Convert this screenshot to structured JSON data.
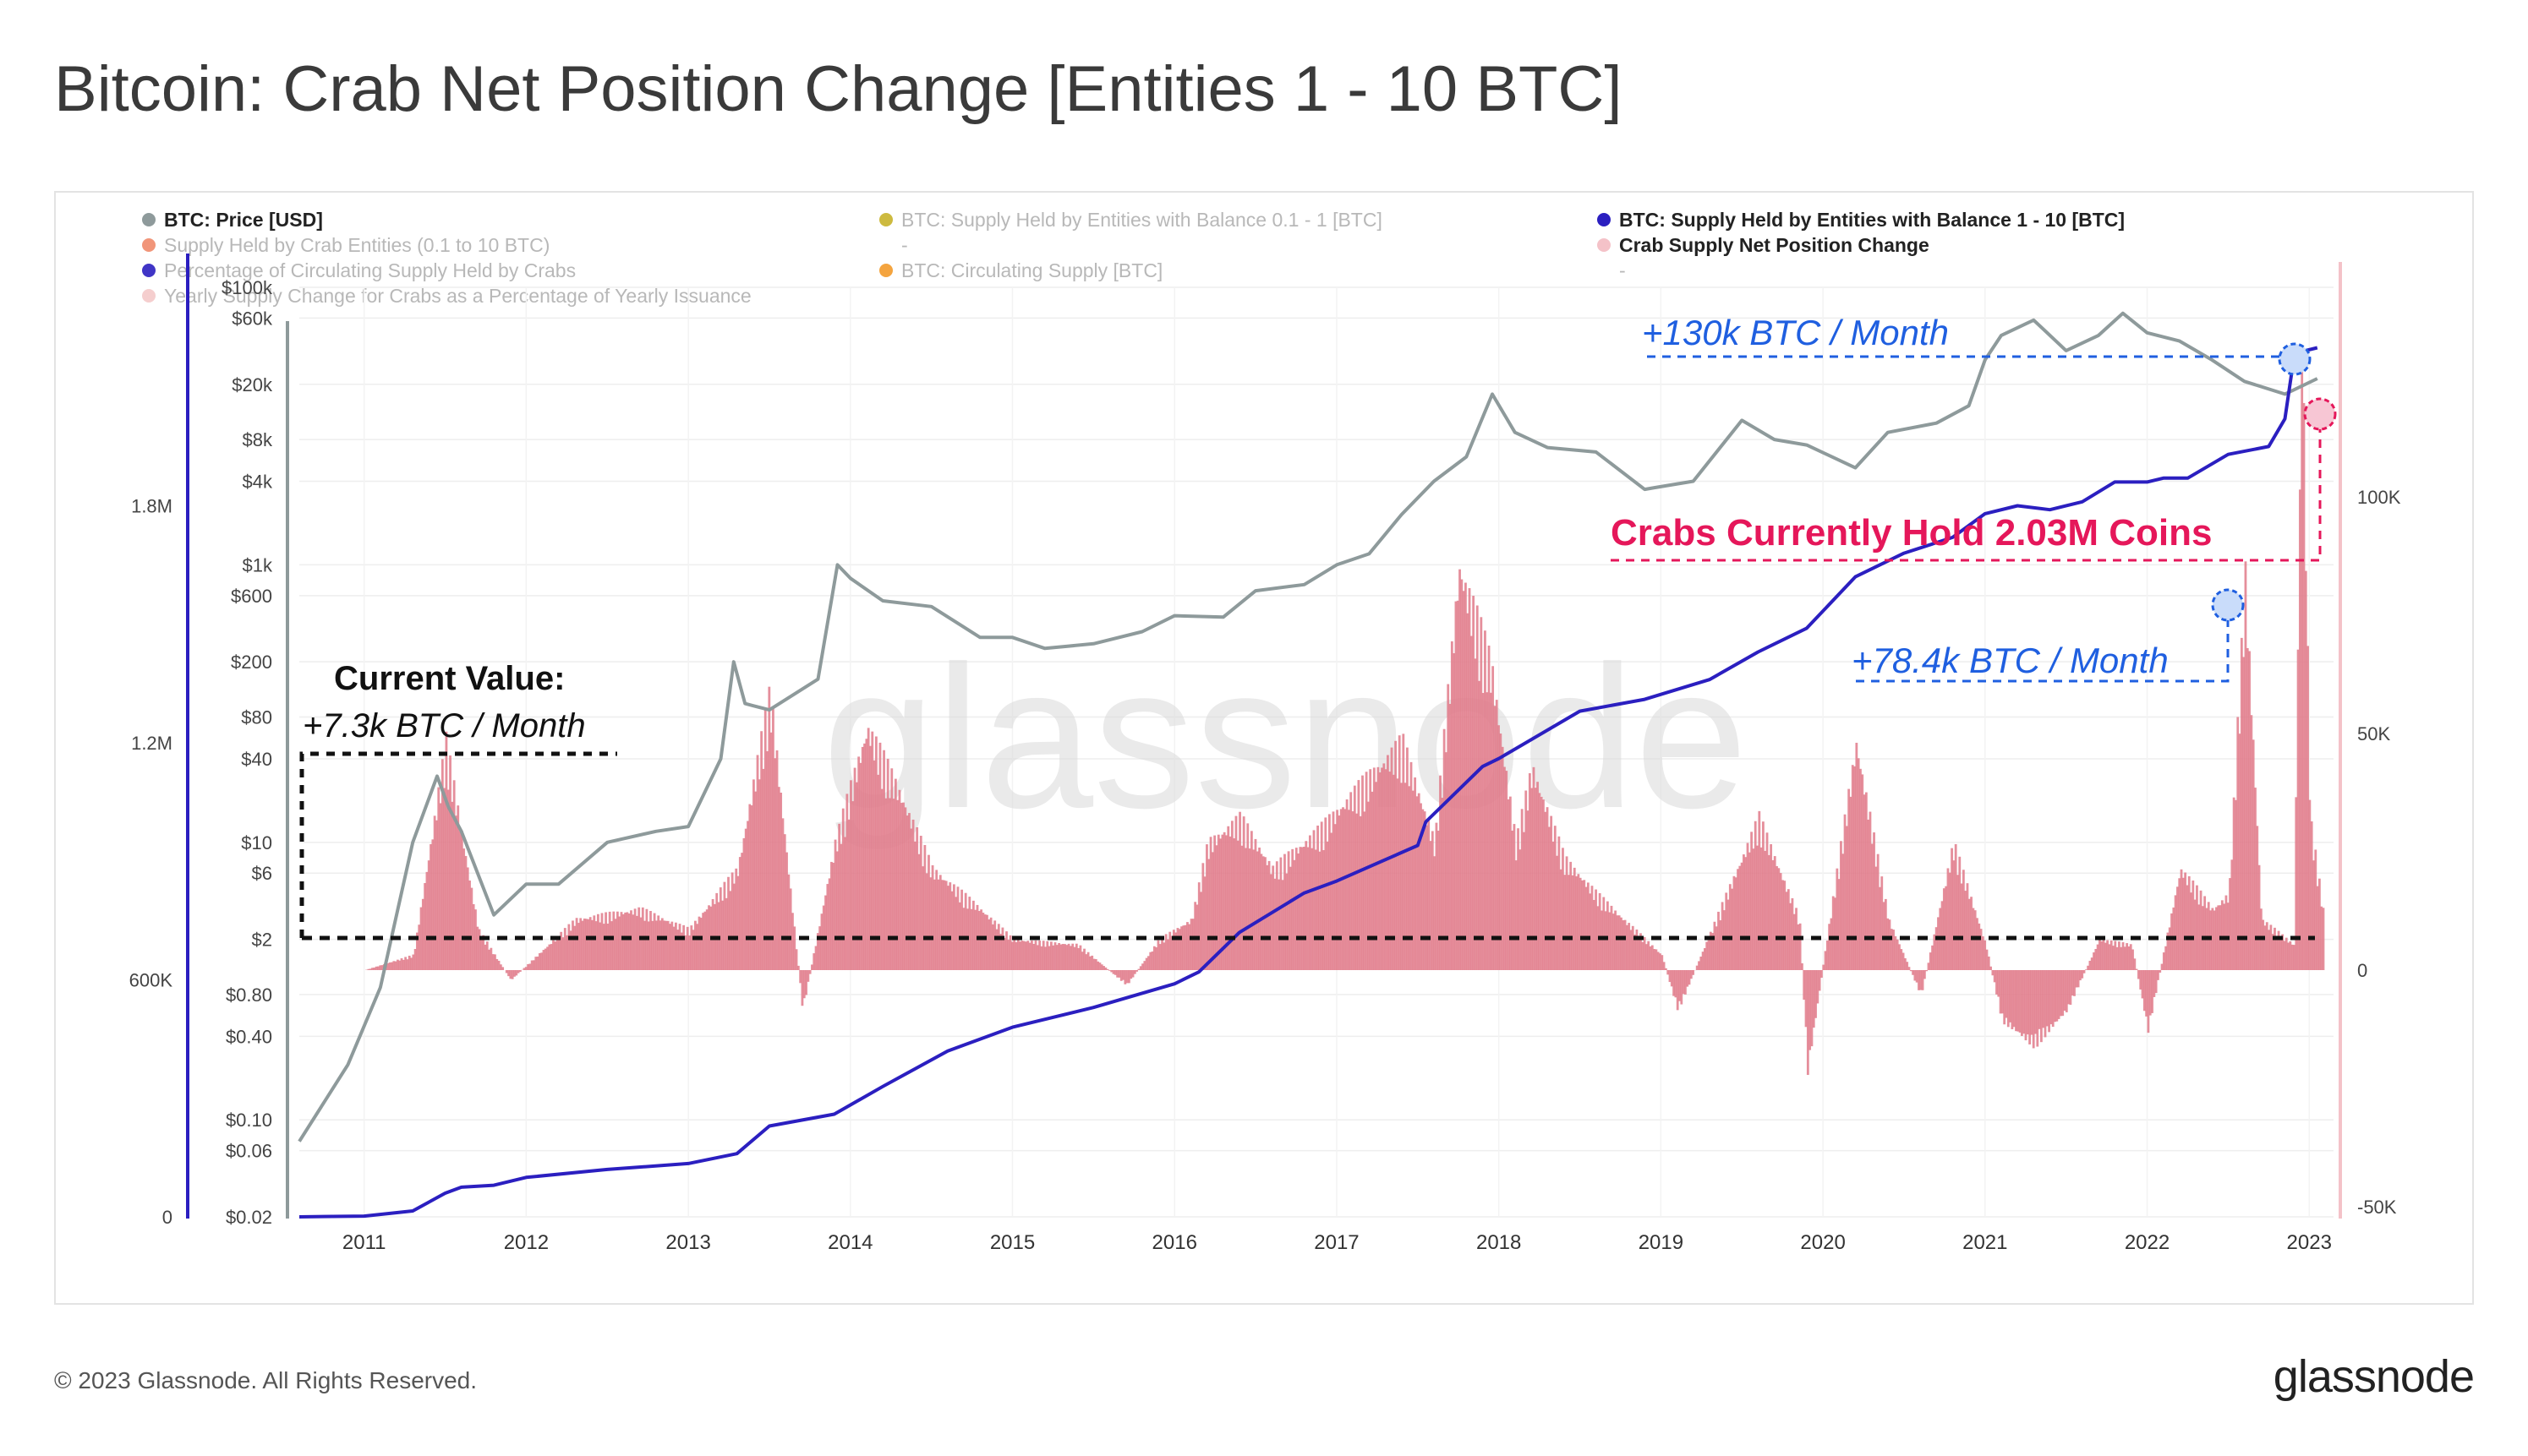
{
  "title": "Bitcoin: Crab Net Position Change [Entities 1 - 10 BTC]",
  "footer": {
    "copyright": "© 2023 Glassnode. All Rights Reserved.",
    "logo": "glassnode"
  },
  "watermark": "glassnode",
  "legend": [
    {
      "label": "BTC: Price [USD]",
      "color": "#8e9a9b",
      "active": true
    },
    {
      "label": "BTC: Supply Held by Entities with Balance 0.1 - 1 [BTC]",
      "color": "#c8b22a",
      "active": false
    },
    {
      "label": "BTC: Supply Held by Entities with Balance 1 - 10 [BTC]",
      "color": "#2b1fc0",
      "active": true
    },
    {
      "label": "Supply Held by Crab Entities (0.1 to 10 BTC)",
      "color": "#ef8a6a",
      "active": false
    },
    {
      "label": "-",
      "color": "",
      "active": false
    },
    {
      "label": "Crab Supply Net Position Change",
      "color": "#f4c2c8",
      "active": true
    },
    {
      "label": "Percentage of Circulating Supply Held by Crabs",
      "color": "#2b1fc0",
      "active": false
    },
    {
      "label": "BTC: Circulating Supply [BTC]",
      "color": "#f39a2a",
      "active": false
    },
    {
      "label": "-",
      "color": "",
      "active": false
    },
    {
      "label": "Yearly Supply Change for Crabs as a Percentage of Yearly Issuance",
      "color": "#f4c9c9",
      "active": false
    }
  ],
  "annotations": {
    "current_value_title": "Current Value:",
    "current_value": "+7.3k BTC / Month",
    "peak_2022": "+130k BTC / Month",
    "peak_mid_2022": "+78.4k BTC / Month",
    "crabs_hold": "Crabs Currently Hold 2.03M Coins"
  },
  "colors": {
    "price": "#8e9a9b",
    "supply": "#2b1fc0",
    "netchange": "#e07a89",
    "accent_blue": "#1f5fe0",
    "accent_pink": "#e5175a"
  },
  "chart_data": {
    "type": "line",
    "x_ticks": [
      "2011",
      "2012",
      "2013",
      "2014",
      "2015",
      "2016",
      "2017",
      "2018",
      "2019",
      "2020",
      "2021",
      "2022",
      "2023"
    ],
    "price_axis": {
      "scale": "log",
      "ticks": [
        "$100k",
        "$60k",
        "$20k",
        "$8k",
        "$4k",
        "$1k",
        "$600",
        "$200",
        "$80",
        "$40",
        "$10",
        "$6",
        "$2",
        "$0.80",
        "$0.40",
        "$0.10",
        "$0.06",
        "$0.02"
      ],
      "tick_values": [
        100000,
        60000,
        20000,
        8000,
        4000,
        1000,
        600,
        200,
        80,
        40,
        10,
        6,
        2,
        0.8,
        0.4,
        0.1,
        0.06,
        0.02
      ]
    },
    "supply_axis": {
      "ticks": [
        "1.8M",
        "1.2M",
        "600K",
        "0"
      ],
      "tick_values": [
        1800000,
        1200000,
        600000,
        0
      ]
    },
    "netchange_axis": {
      "ticks": [
        "100K",
        "50K",
        "0",
        "-50K"
      ],
      "tick_values": [
        100000,
        50000,
        0,
        -50000
      ]
    },
    "series": [
      {
        "name": "BTC: Price [USD]",
        "x": [
          2010.6,
          2010.9,
          2011.1,
          2011.3,
          2011.45,
          2011.52,
          2011.6,
          2011.8,
          2012.0,
          2012.2,
          2012.5,
          2012.8,
          2013.0,
          2013.2,
          2013.28,
          2013.35,
          2013.5,
          2013.8,
          2013.92,
          2014.0,
          2014.2,
          2014.5,
          2014.8,
          2015.0,
          2015.2,
          2015.5,
          2015.8,
          2016.0,
          2016.3,
          2016.5,
          2016.8,
          2017.0,
          2017.2,
          2017.4,
          2017.6,
          2017.8,
          2017.96,
          2018.1,
          2018.3,
          2018.6,
          2018.9,
          2018.96,
          2019.2,
          2019.5,
          2019.7,
          2019.9,
          2020.2,
          2020.4,
          2020.7,
          2020.9,
          2021.0,
          2021.1,
          2021.3,
          2021.5,
          2021.7,
          2021.85,
          2022.0,
          2022.2,
          2022.4,
          2022.6,
          2022.85,
          2023.05
        ],
        "y": [
          0.07,
          0.25,
          0.9,
          10,
          30,
          18,
          12,
          3,
          5,
          5,
          10,
          12,
          13,
          40,
          200,
          100,
          90,
          150,
          1000,
          800,
          550,
          500,
          300,
          300,
          250,
          270,
          330,
          430,
          420,
          650,
          720,
          1000,
          1200,
          2300,
          4000,
          6000,
          17000,
          9000,
          7000,
          6500,
          3500,
          3600,
          4000,
          11000,
          8000,
          7300,
          5000,
          9000,
          10500,
          14000,
          30000,
          45000,
          58000,
          35000,
          45000,
          65000,
          47000,
          41000,
          30000,
          21000,
          17000,
          22000
        ]
      },
      {
        "name": "BTC: Supply Held by Entities with Balance 1 - 10 [BTC]",
        "x": [
          2010.6,
          2011.0,
          2011.3,
          2011.5,
          2011.6,
          2011.8,
          2012.0,
          2012.5,
          2013.0,
          2013.3,
          2013.5,
          2013.9,
          2014.2,
          2014.6,
          2015.0,
          2015.5,
          2016.0,
          2016.1,
          2016.15,
          2016.4,
          2016.8,
          2017.0,
          2017.5,
          2017.55,
          2017.9,
          2018.0,
          2018.5,
          2018.9,
          2019.3,
          2019.6,
          2019.9,
          2020.2,
          2020.5,
          2020.8,
          2021.0,
          2021.2,
          2021.4,
          2021.6,
          2021.8,
          2022.0,
          2022.1,
          2022.25,
          2022.5,
          2022.75,
          2022.85,
          2022.9,
          2022.95,
          2023.05
        ],
        "y": [
          0,
          2000,
          15000,
          60000,
          75000,
          80000,
          100000,
          120000,
          135000,
          160000,
          230000,
          260000,
          330000,
          420000,
          480000,
          530000,
          590000,
          610000,
          620000,
          720000,
          820000,
          850000,
          940000,
          1000000,
          1140000,
          1160000,
          1280000,
          1310000,
          1360000,
          1430000,
          1490000,
          1620000,
          1680000,
          1720000,
          1780000,
          1800000,
          1790000,
          1810000,
          1860000,
          1860000,
          1870000,
          1870000,
          1930000,
          1950000,
          2020000,
          2160000,
          2190000,
          2200000
        ]
      },
      {
        "name": "Crab Supply Net Position Change",
        "x": [
          2010.6,
          2011.0,
          2011.3,
          2011.5,
          2011.7,
          2011.9,
          2012.3,
          2012.7,
          2013.0,
          2013.3,
          2013.5,
          2013.7,
          2013.9,
          2014.1,
          2014.3,
          2014.5,
          2014.8,
          2015.0,
          2015.4,
          2015.7,
          2015.9,
          2016.1,
          2016.2,
          2016.4,
          2016.6,
          2016.9,
          2017.1,
          2017.4,
          2017.6,
          2017.75,
          2017.95,
          2018.1,
          2018.2,
          2018.4,
          2018.6,
          2018.9,
          2019.0,
          2019.1,
          2019.4,
          2019.6,
          2019.85,
          2019.9,
          2020.0,
          2020.2,
          2020.4,
          2020.6,
          2020.8,
          2021.0,
          2021.1,
          2021.3,
          2021.5,
          2021.7,
          2021.9,
          2022.0,
          2022.2,
          2022.4,
          2022.5,
          2022.6,
          2022.7,
          2022.9,
          2022.95,
          2023.0,
          2023.1
        ],
        "y": [
          0,
          0,
          3000,
          45000,
          8000,
          -2000,
          10000,
          12000,
          8000,
          20000,
          55000,
          -8000,
          25000,
          48000,
          35000,
          20000,
          12000,
          6000,
          5000,
          -3000,
          6000,
          10000,
          25000,
          30000,
          20000,
          28000,
          35000,
          45000,
          25000,
          80000,
          60000,
          25000,
          40000,
          22000,
          15000,
          6000,
          3000,
          -8000,
          15000,
          30000,
          10000,
          -20000,
          2000,
          45000,
          10000,
          -5000,
          25000,
          5000,
          -10000,
          -15000,
          -8000,
          6000,
          5000,
          -12000,
          20000,
          12000,
          15000,
          78000,
          10000,
          5000,
          130000,
          30000,
          7300
        ]
      }
    ]
  }
}
